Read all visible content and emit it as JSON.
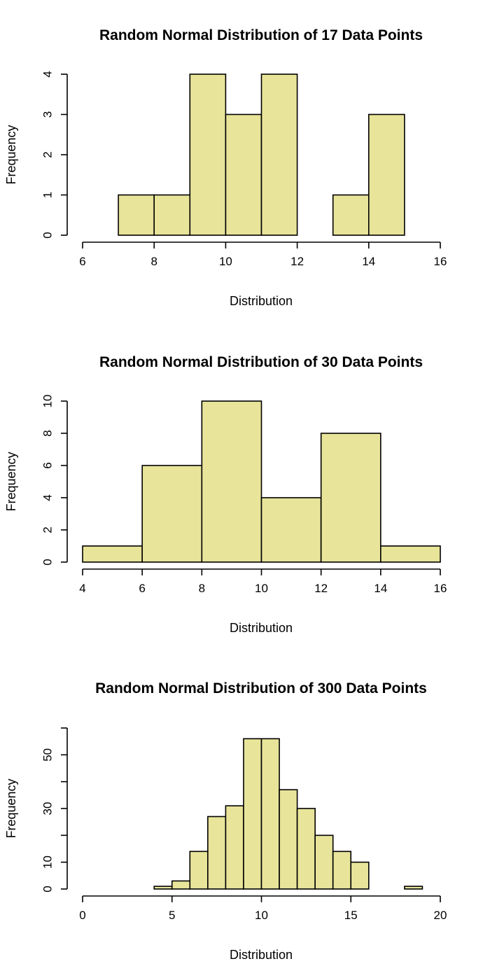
{
  "chart_data": [
    {
      "type": "bar",
      "title": "Random Normal Distribution of 17 Data Points",
      "xlabel": "Distribution",
      "ylabel": "Frequency",
      "bin_edges": [
        7,
        8,
        9,
        10,
        11,
        12,
        13,
        14,
        15
      ],
      "values": [
        1,
        1,
        4,
        3,
        4,
        0,
        1,
        3
      ],
      "xlim": [
        6,
        16
      ],
      "ylim": [
        0,
        4
      ],
      "x_ticks": [
        6,
        8,
        10,
        12,
        14,
        16
      ],
      "y_ticks": [
        0,
        1,
        2,
        3,
        4
      ],
      "bar_color": "#E8E49A",
      "grid": false
    },
    {
      "type": "bar",
      "title": "Random Normal Distribution of 30 Data Points",
      "xlabel": "Distribution",
      "ylabel": "Frequency",
      "bin_edges": [
        4,
        6,
        8,
        10,
        12,
        14,
        16
      ],
      "values": [
        1,
        6,
        10,
        4,
        8,
        1
      ],
      "xlim": [
        4,
        16
      ],
      "ylim": [
        0,
        10
      ],
      "x_ticks": [
        4,
        6,
        8,
        10,
        12,
        14,
        16
      ],
      "y_ticks": [
        0,
        2,
        4,
        6,
        8,
        10
      ],
      "bar_color": "#E8E49A",
      "grid": false
    },
    {
      "type": "bar",
      "title": "Random Normal Distribution of 300 Data Points",
      "xlabel": "Distribution",
      "ylabel": "Frequency",
      "bin_edges": [
        4,
        5,
        6,
        7,
        8,
        9,
        10,
        11,
        12,
        13,
        14,
        15,
        16,
        17,
        18,
        19
      ],
      "values": [
        1,
        3,
        14,
        27,
        31,
        56,
        56,
        37,
        30,
        20,
        14,
        10,
        0,
        0,
        1
      ],
      "xlim": [
        0,
        20
      ],
      "ylim": [
        0,
        60
      ],
      "x_ticks": [
        0,
        5,
        10,
        15,
        20
      ],
      "y_ticks": [
        0,
        10,
        20,
        30,
        40,
        50,
        60
      ],
      "y_tick_labels": [
        "0",
        "10",
        "",
        "30",
        "",
        "50",
        ""
      ],
      "bar_color": "#E8E49A",
      "grid": false
    }
  ]
}
